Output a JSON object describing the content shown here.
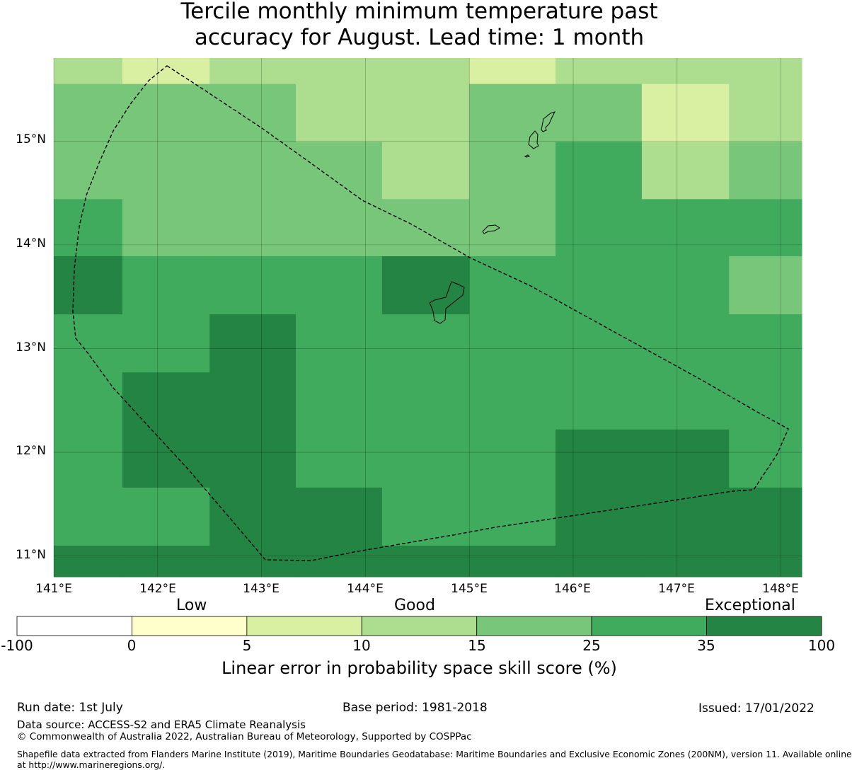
{
  "title_line1": "Tercile monthly minimum temperature past",
  "title_line2": "accuracy for August. Lead time: 1 month",
  "map": {
    "lon_range": [
      141.0,
      148.2
    ],
    "lat_range": [
      10.8,
      15.8
    ],
    "lon_labels": [
      "141°E",
      "142°E",
      "143°E",
      "144°E",
      "145°E",
      "146°E",
      "147°E",
      "148°E"
    ],
    "lat_labels": [
      "15°N",
      "14°N",
      "13°N",
      "12°N",
      "11°N"
    ],
    "grid_note_units": "degrees",
    "cells_lon_edges": [
      141.0,
      141.66,
      142.5,
      143.33,
      144.16,
      145.0,
      145.83,
      146.66,
      147.5,
      148.2
    ],
    "cells_lat_edges": [
      15.8,
      15.55,
      14.99,
      14.44,
      13.89,
      13.33,
      12.77,
      12.22,
      11.66,
      11.1,
      10.8
    ],
    "cell_classes": [
      [
        3,
        2,
        3,
        3,
        3,
        2,
        3,
        3,
        3
      ],
      [
        4,
        4,
        4,
        3,
        3,
        4,
        4,
        2,
        3
      ],
      [
        4,
        4,
        4,
        4,
        3,
        4,
        5,
        3,
        4
      ],
      [
        5,
        4,
        4,
        4,
        4,
        4,
        5,
        5,
        5
      ],
      [
        6,
        5,
        5,
        5,
        6,
        5,
        5,
        5,
        4
      ],
      [
        5,
        5,
        6,
        5,
        5,
        5,
        5,
        5,
        5
      ],
      [
        5,
        6,
        6,
        5,
        5,
        5,
        5,
        5,
        5
      ],
      [
        5,
        6,
        6,
        5,
        5,
        5,
        6,
        6,
        5
      ],
      [
        5,
        5,
        6,
        6,
        5,
        5,
        6,
        6,
        6
      ],
      [
        6,
        6,
        6,
        6,
        6,
        6,
        6,
        6,
        6
      ]
    ]
  },
  "colorbar": {
    "categories": [
      "Low",
      "Good",
      "Exceptional"
    ],
    "ticks": [
      "-100",
      "0",
      "5",
      "10",
      "15",
      "25",
      "35",
      "100"
    ],
    "colors": [
      "#ffffff",
      "#ffffcc",
      "#d9f0a3",
      "#addd8e",
      "#78c679",
      "#41ab5d",
      "#238443"
    ],
    "label": "Linear error in probability space skill score (%)"
  },
  "footer": {
    "run_date": "Run date: 1st July",
    "base_period": "Base period: 1981-2018",
    "issued": "Issued: 17/01/2022",
    "data_source": "Data source: ACCESS-S2 and ERA5 Climate Reanalysis",
    "copyright": "© Commonwealth of Australia 2022, Australian Bureau of Meteorology, Supported by COSPPac",
    "shapefile_line1": "Shapefile data extracted from Flanders Marine Institute (2019), Maritime Boundaries Geodatabase: Maritime Boundaries and Exclusive Economic Zones (200NM), version 11. Available online",
    "shapefile_line2": "at http://www.marineregions.org/."
  }
}
